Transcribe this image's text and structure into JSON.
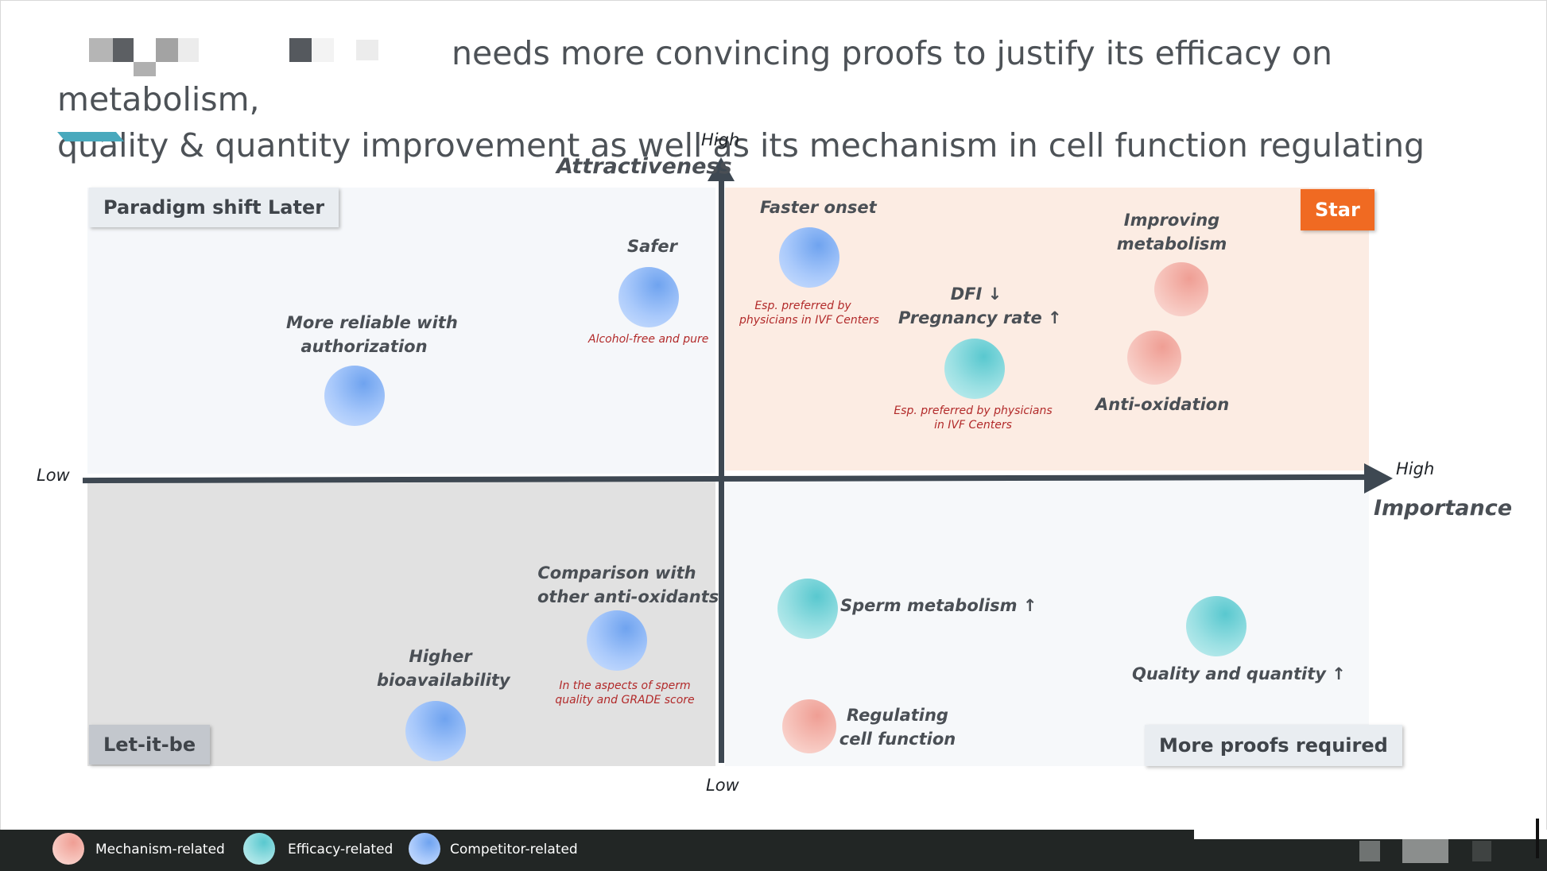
{
  "title": {
    "line1": "needs more convincing proofs to justify its efficacy on metabolism,",
    "line2": "quality & quantity improvement as well as its mechanism in cell function regulating"
  },
  "axes": {
    "y_name": "Attractiveness",
    "y_high": "High",
    "y_low": "Low",
    "x_name": "Importance",
    "x_high": "High",
    "x_low": "Low"
  },
  "quadrants": {
    "top_left": "Paradigm shift Later",
    "top_right": "Star",
    "bottom_left": "Let-it-be",
    "bottom_right": "More proofs required"
  },
  "colors": {
    "mechanism": "#f2ada4",
    "efficacy": "#7fd6da",
    "competitor": "#8fb8f5",
    "star_badge": "#f06a22",
    "top_left_bg": "#f5f7fa",
    "top_right_bg": "#fcece3",
    "bottom_left_bg": "#e1e1e1",
    "bottom_right_bg": "#f6f8fa",
    "axis": "#3e4852"
  },
  "items": {
    "faster_onset": {
      "label": "Faster onset",
      "note1": "Esp. preferred by",
      "note2": "physicians in IVF Centers",
      "category": "competitor"
    },
    "safer": {
      "label": "Safer",
      "note": "Alcohol-free and pure",
      "category": "competitor"
    },
    "reliable": {
      "line1": "More reliable with",
      "line2": "authorization",
      "category": "competitor"
    },
    "dfi": {
      "line1": "DFI",
      "line1_arrow": "↓",
      "line2": "Pregnancy rate",
      "line2_arrow": "↑",
      "note1": "Esp. preferred by physicians",
      "note2": "in IVF Centers",
      "category": "efficacy"
    },
    "improving_metabolism": {
      "line1": "Improving",
      "line2": "metabolism",
      "category": "mechanism"
    },
    "anti_oxidation": {
      "label": "Anti-oxidation",
      "category": "mechanism"
    },
    "comparison": {
      "line1": "Comparison with",
      "line2": "other anti-oxidants",
      "note1": "In the aspects of sperm",
      "note2": "quality and GRADE score",
      "category": "competitor"
    },
    "higher_bioavailability": {
      "line1": "Higher",
      "line2": "bioavailability",
      "category": "competitor"
    },
    "sperm_metabolism": {
      "label": "Sperm metabolism",
      "arrow": "↑",
      "category": "efficacy"
    },
    "quality_quantity": {
      "label": "Quality and quantity",
      "arrow": "↑",
      "category": "efficacy"
    },
    "regulating": {
      "line1": "Regulating",
      "line2": "cell function",
      "category": "mechanism"
    }
  },
  "legend": {
    "mechanism": "Mechanism-related",
    "efficacy": "Efficacy-related",
    "competitor": "Competitor-related"
  }
}
